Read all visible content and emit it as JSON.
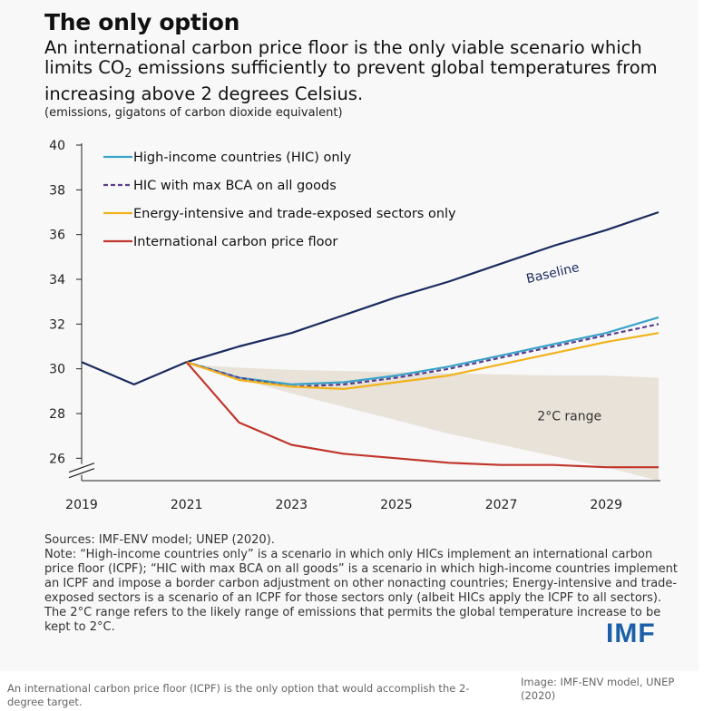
{
  "header": {
    "title": "The only option",
    "subtitle_pre": "An international carbon price floor is the only viable scenario which limits CO",
    "subtitle_sub": "2",
    "subtitle_post": " emissions sufficiently to prevent global temperatures from increasing above 2 degrees Celsius.",
    "units": "(emissions, gigatons of carbon dioxide equivalent)"
  },
  "chart_data": {
    "type": "line",
    "ylim": [
      25,
      40
    ],
    "xlim": [
      2019,
      2030
    ],
    "y_ticks": [
      "26",
      "28",
      "30",
      "32",
      "34",
      "36",
      "38",
      "40"
    ],
    "x_ticks": [
      "2019",
      "2021",
      "2023",
      "2025",
      "2027",
      "2029"
    ],
    "legend_position": "top-left",
    "grid": false,
    "series": [
      {
        "name": "Baseline",
        "color": "#1b2a5e",
        "style": "solid",
        "label_on_chart": true,
        "x": [
          2019,
          2020,
          2021,
          2022,
          2023,
          2024,
          2025,
          2026,
          2027,
          2028,
          2029,
          2030
        ],
        "y": [
          30.3,
          29.3,
          30.3,
          31.0,
          31.6,
          32.4,
          33.2,
          33.9,
          34.7,
          35.5,
          36.2,
          37.0
        ]
      },
      {
        "name": "High-income countries (HIC) only",
        "color": "#3aa3c9",
        "style": "solid",
        "x": [
          2021,
          2022,
          2023,
          2024,
          2025,
          2026,
          2027,
          2028,
          2029,
          2030
        ],
        "y": [
          30.3,
          29.6,
          29.3,
          29.4,
          29.7,
          30.1,
          30.6,
          31.1,
          31.6,
          32.3
        ]
      },
      {
        "name": "HIC with max BCA on all goods",
        "color": "#5b3d8f",
        "style": "dashed",
        "x": [
          2021,
          2022,
          2023,
          2024,
          2025,
          2026,
          2027,
          2028,
          2029,
          2030
        ],
        "y": [
          30.3,
          29.6,
          29.2,
          29.3,
          29.6,
          30.0,
          30.5,
          31.0,
          31.5,
          32.0
        ]
      },
      {
        "name": "Energy-intensive and trade-exposed sectors only",
        "color": "#f2b21a",
        "style": "solid",
        "x": [
          2021,
          2022,
          2023,
          2024,
          2025,
          2026,
          2027,
          2028,
          2029,
          2030
        ],
        "y": [
          30.3,
          29.5,
          29.2,
          29.1,
          29.4,
          29.7,
          30.2,
          30.7,
          31.2,
          31.6
        ]
      },
      {
        "name": "International carbon price floor",
        "color": "#c0362c",
        "style": "solid",
        "x": [
          2021,
          2022,
          2023,
          2024,
          2025,
          2026,
          2027,
          2028,
          2029,
          2030
        ],
        "y": [
          30.3,
          27.6,
          26.6,
          26.2,
          26.0,
          25.8,
          25.7,
          25.7,
          25.6,
          25.6
        ]
      }
    ],
    "band": {
      "label": "2°C range",
      "color": "#e8e2d8",
      "x": [
        2019,
        2021,
        2022,
        2023,
        2024,
        2025,
        2026,
        2027,
        2028,
        2029,
        2030
      ],
      "upper": [
        30.3,
        30.2,
        30.05,
        29.95,
        29.9,
        29.85,
        29.8,
        29.75,
        29.7,
        29.7,
        29.6
      ],
      "lower": [
        30.3,
        30.2,
        29.55,
        28.9,
        28.3,
        27.7,
        27.1,
        26.6,
        26.1,
        25.6,
        25.0
      ]
    }
  },
  "footer": {
    "sources": "Sources: IMF-ENV model; UNEP (2020).",
    "note": "Note: “High-income countries only” is a scenario in which only HICs implement an international carbon price floor (ICPF); “HIC with max BCA on all goods” is a scenario in which high-income countries implement an ICPF and impose a border carbon adjustment on other nonacting countries; Energy-intensive and trade-exposed sectors is a scenario of an ICPF for those sectors only (albeit HICs apply the ICPF to all sectors).  The 2°C range refers to the likely range of emissions that permits the global temperature increase to be kept to 2°C.",
    "logo": "IMF"
  },
  "page": {
    "caption": "An international carbon price floor (ICPF) is the only option that would accomplish the 2-degree target.",
    "credit": "Image: IMF-ENV model, UNEP (2020)"
  }
}
